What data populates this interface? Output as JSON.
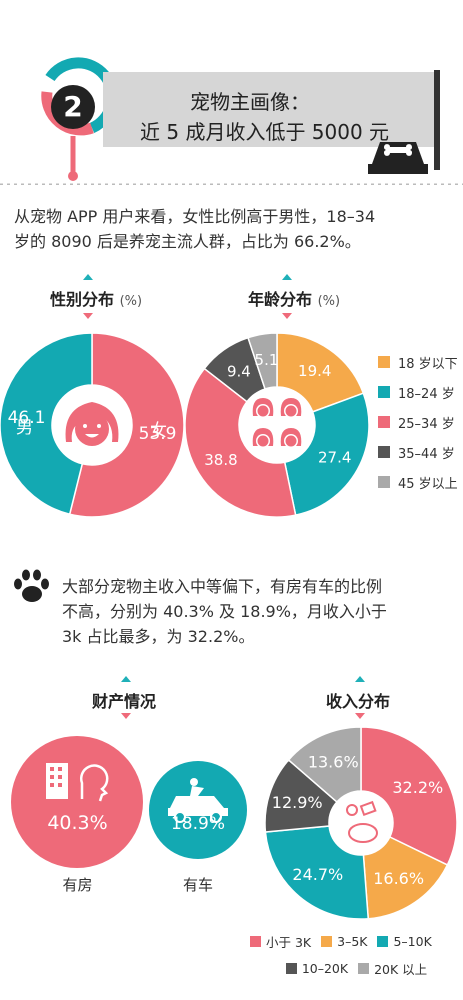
{
  "header": {
    "number": "2",
    "title_line1": "宠物主画像：",
    "title_line2": "近 5 成月收入低于 5000 元"
  },
  "intro": {
    "line1": "从宠物 APP 用户来看，女性比例高于男性，18–34",
    "line2": "岁的 8090 后是养宠主流人群，占比为 66.2%。"
  },
  "gender": {
    "title": "性别分布",
    "unit": "(%)",
    "male_label": "男",
    "female_label": "女"
  },
  "age": {
    "title": "年龄分布",
    "unit": "(%)"
  },
  "income_text": {
    "line1": "大部分宠物主收入中等偏下，有房有车的比例",
    "line2": "不高，分别为 40.3% 及 18.9%，月收入小于",
    "line3": "3k 占比最多，为 32.2%。"
  },
  "assets": {
    "title": "财产情况",
    "house_value": "40.3%",
    "house_label": "有房",
    "car_value": "18.9%",
    "car_label": "有车"
  },
  "income": {
    "title": "收入分布"
  },
  "colors": {
    "pink": "#ee6a79",
    "teal": "#13a9b2",
    "orange": "#f5a94a",
    "dark": "#555555",
    "gray": "#a9a9a9"
  },
  "chart_data": [
    {
      "type": "pie",
      "title": "性别分布",
      "unit": "%",
      "categories": [
        "女",
        "男"
      ],
      "values": [
        53.9,
        46.1
      ],
      "labels": [
        "53.9",
        "46.1"
      ],
      "colors": [
        "#ee6a79",
        "#13a9b2"
      ],
      "donut": true
    },
    {
      "type": "pie",
      "title": "年龄分布",
      "unit": "%",
      "categories": [
        "18 岁以下",
        "18–24 岁",
        "25–34 岁",
        "35–44 岁",
        "45 岁以上"
      ],
      "values": [
        19.4,
        27.4,
        38.8,
        9.4,
        5.1
      ],
      "labels": [
        "19.4",
        "27.4",
        "38.8",
        "9.4",
        "5.1"
      ],
      "colors": [
        "#f5a94a",
        "#13a9b2",
        "#ee6a79",
        "#555555",
        "#a9a9a9"
      ],
      "legend_position": "right",
      "donut": true
    },
    {
      "type": "bar",
      "title": "财产情况",
      "categories": [
        "有房",
        "有车"
      ],
      "values": [
        40.3,
        18.9
      ],
      "labels": [
        "40.3%",
        "18.9%"
      ]
    },
    {
      "type": "pie",
      "title": "收入分布",
      "categories": [
        "小于 3K",
        "3–5K",
        "5–10K",
        "10–20K",
        "20K 以上"
      ],
      "values": [
        32.2,
        16.6,
        24.7,
        12.9,
        13.6
      ],
      "labels": [
        "32.2%",
        "16.6%",
        "24.7%",
        "12.9%",
        "13.6%"
      ],
      "colors": [
        "#ee6a79",
        "#f5a94a",
        "#13a9b2",
        "#555555",
        "#a9a9a9"
      ],
      "legend_position": "bottom",
      "donut": true
    }
  ]
}
